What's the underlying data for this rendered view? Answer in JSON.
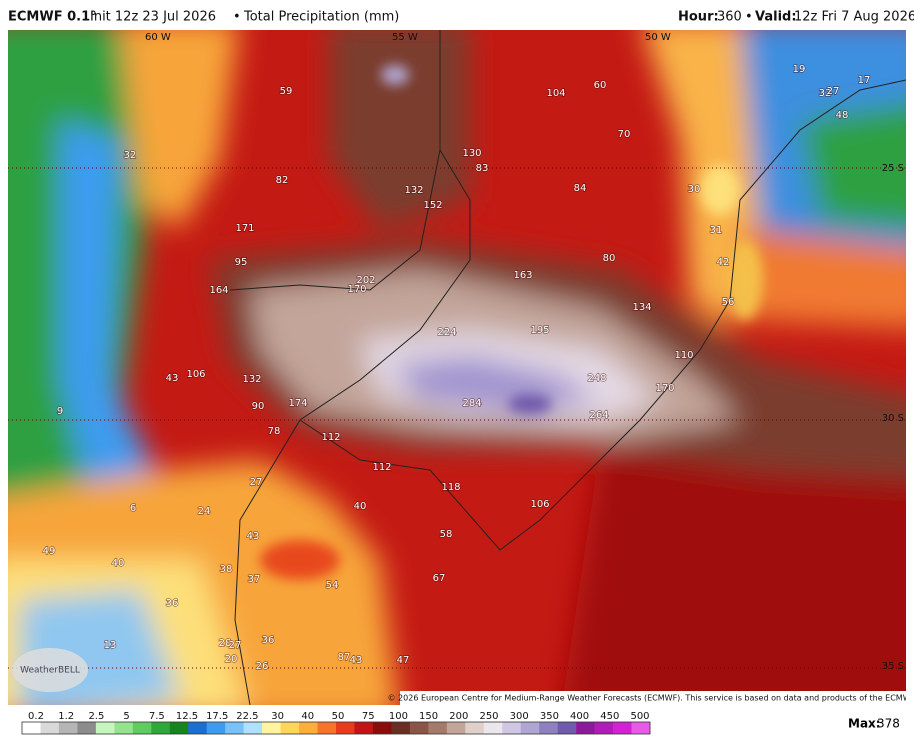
{
  "header": {
    "model": "ECMWF 0.1°",
    "init": "Init 12z 23 Jul 2026",
    "product": "Total Precipitation (mm)",
    "hour_label": "Hour:",
    "hour": "360",
    "valid_label": "Valid:",
    "valid": "12z Fri 7 Aug 2026"
  },
  "map": {
    "graticule_labels": [
      "60 W",
      "55 W",
      "50 W",
      "25 S",
      "30 S",
      "35 S"
    ],
    "labels": [
      59,
      104,
      60,
      19,
      32,
      27,
      17,
      48,
      70,
      32,
      130,
      83,
      82,
      132,
      84,
      30,
      152,
      171,
      31,
      95,
      80,
      42,
      163,
      202,
      170,
      164,
      56,
      134,
      224,
      195,
      110,
      43,
      106,
      132,
      248,
      170,
      284,
      9,
      90,
      174,
      264,
      78,
      112,
      112,
      118,
      27,
      106,
      6,
      24,
      40,
      58,
      43,
      49,
      40,
      38,
      37,
      54,
      67,
      36,
      13,
      28,
      27,
      36,
      20,
      87,
      43,
      47,
      26
    ],
    "logo": "WeatherBELL",
    "credit": "© 2026 European Centre for Medium-Range Weather Forecasts (ECMWF). This service is based on data and products of the ECMWF."
  },
  "colorbar": {
    "labels": [
      "0.2",
      "1.2",
      "2.5",
      "5",
      "7.5",
      "12.5",
      "17.5",
      "22.5",
      "30",
      "40",
      "50",
      "75",
      "100",
      "150",
      "200",
      "250",
      "300",
      "350",
      "400",
      "450",
      "500"
    ],
    "colors": [
      "#ffffff",
      "#d9d9d9",
      "#b5b5b5",
      "#8c8c8c",
      "#c7f5c0",
      "#96e38f",
      "#5fcc5f",
      "#2fa83a",
      "#17851f",
      "#1c6fd0",
      "#3e9cf0",
      "#79c2f7",
      "#b0e0fb",
      "#fff59e",
      "#fed65a",
      "#fcae3a",
      "#f9742b",
      "#e83a1c",
      "#c21414",
      "#8c0c0c",
      "#6b2e22",
      "#8a5546",
      "#a57a6b",
      "#c3a59a",
      "#dfd0ca",
      "#ece7ee",
      "#cfc8e4",
      "#b0a6d3",
      "#8f80c0",
      "#6f5aab",
      "#8b1a9a",
      "#b01cb8",
      "#d322d4",
      "#e85ae8"
    ]
  },
  "max_label": "Max:",
  "max_value": 378
}
